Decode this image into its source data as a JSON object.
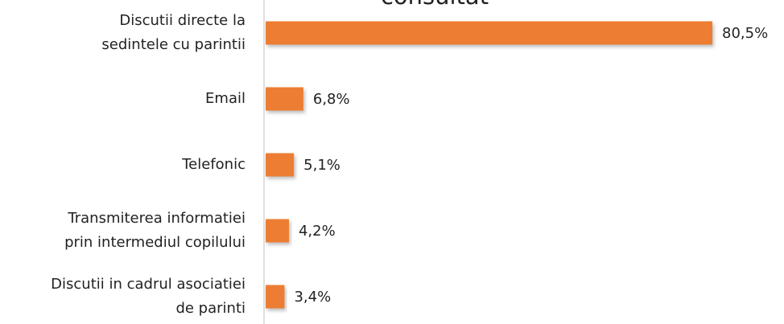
{
  "chart_data": {
    "type": "bar",
    "orientation": "horizontal",
    "title": "consultat",
    "categories": [
      "Discutii directe la\nsedintele cu parintii",
      "Email",
      "Telefonic",
      "Transmiterea informatiei\nprin intermediul copilului",
      "Discutii in cadrul asociatiei\nde parinti"
    ],
    "values": [
      80.5,
      6.8,
      5.1,
      4.2,
      3.4
    ],
    "value_labels": [
      "80,5%",
      "6,8%",
      "5,1%",
      "4,2%",
      "3,4%"
    ],
    "color": "#ed7d31"
  }
}
